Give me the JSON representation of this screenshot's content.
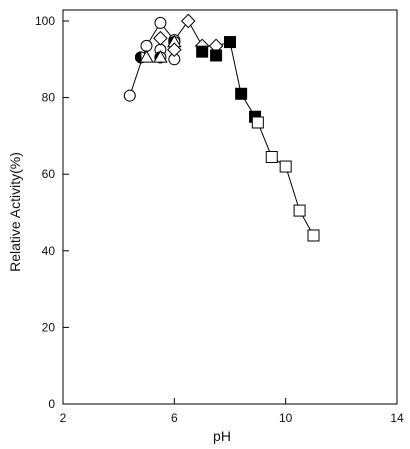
{
  "chart_data": {
    "type": "scatter",
    "xlabel": "pH",
    "ylabel": "Relative Activity(%)",
    "xlim": [
      2,
      14
    ],
    "ylim": [
      0,
      105
    ],
    "x_ticks": [
      2,
      6,
      10,
      14
    ],
    "x_tick_labels": [
      "2",
      "6",
      "10",
      "14"
    ],
    "y_ticks": [
      0,
      20,
      40,
      60,
      80,
      100
    ],
    "y_tick_labels": [
      "0",
      "20",
      "40",
      "60",
      "80",
      "100"
    ],
    "grid": false,
    "legend": "none",
    "series": [
      {
        "marker": "circle-open",
        "connected": false,
        "points": [
          [
            4.4,
            80.5
          ],
          [
            5.0,
            93.5
          ],
          [
            5.5,
            99.5
          ],
          [
            5.5,
            92.5
          ],
          [
            6.0,
            90
          ],
          [
            6.0,
            95
          ]
        ]
      },
      {
        "marker": "circle-half",
        "connected": false,
        "points": [
          [
            4.8,
            90.5
          ],
          [
            5.5,
            90.5
          ],
          [
            6.0,
            94.5
          ]
        ]
      },
      {
        "marker": "triangle-open",
        "connected": false,
        "points": [
          [
            5.0,
            90.5
          ],
          [
            5.5,
            90.5
          ],
          [
            6.0,
            94.5
          ]
        ]
      },
      {
        "marker": "diamond-open",
        "connected": false,
        "points": [
          [
            5.5,
            95.5
          ],
          [
            6.0,
            92.5
          ],
          [
            6.5,
            100
          ],
          [
            7.0,
            93.5
          ],
          [
            7.5,
            93.5
          ]
        ]
      },
      {
        "marker": "square-filled",
        "connected": false,
        "points": [
          [
            7.0,
            92
          ],
          [
            7.5,
            91
          ],
          [
            8.0,
            94.5
          ],
          [
            8.4,
            81
          ],
          [
            8.9,
            75
          ]
        ]
      },
      {
        "marker": "square-open",
        "connected": false,
        "points": [
          [
            9.0,
            73.5
          ],
          [
            9.5,
            64.5
          ],
          [
            10.0,
            62
          ],
          [
            10.5,
            50.5
          ],
          [
            11.0,
            44
          ]
        ]
      }
    ],
    "trend_line": [
      [
        4.4,
        80.5
      ],
      [
        5.0,
        93.5
      ],
      [
        5.5,
        99.5
      ],
      [
        6.0,
        95
      ],
      [
        6.5,
        100
      ],
      [
        7.0,
        93.5
      ],
      [
        7.5,
        93.5
      ],
      [
        8.0,
        94.5
      ],
      [
        8.4,
        81
      ],
      [
        8.9,
        75
      ],
      [
        9.0,
        73.5
      ],
      [
        9.5,
        64.5
      ],
      [
        10.0,
        62
      ],
      [
        10.5,
        50.5
      ],
      [
        11.0,
        44
      ]
    ]
  },
  "colors": {
    "marker_stroke": "#000000",
    "marker_fill_open": "#ffffff",
    "marker_fill_filled": "#000000",
    "axis": "#000000"
  }
}
